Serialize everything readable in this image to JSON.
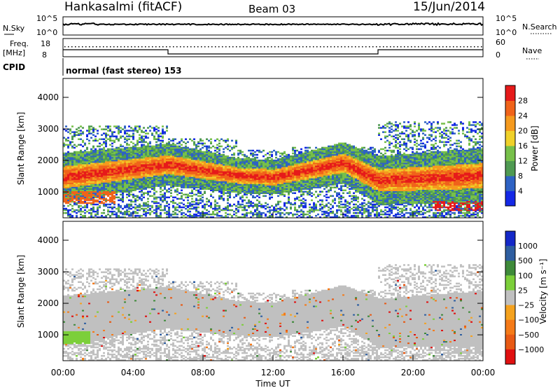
{
  "header": {
    "station": "Hankasalmi (fitACF)",
    "beam": "Beam 03",
    "date": "15/Jun/2014"
  },
  "left_labels": {
    "nsky": "N.Sky",
    "nsky_ticks": [
      "10^5",
      "10^0"
    ],
    "freq": "Freq.",
    "freq_unit": "[MHz]",
    "freq_ticks": [
      "18",
      "8"
    ],
    "cpid": "CPID"
  },
  "right_labels": {
    "nsearch": "N.Search",
    "nsearch_ticks": [
      "10^5",
      "10^0"
    ],
    "nave": "Nave",
    "nave_ticks": [
      "60",
      "0"
    ]
  },
  "cpid_text": "normal (fast stereo) 153",
  "time_axis": {
    "label": "Time UT",
    "ticks": [
      "00:00",
      "04:00",
      "08:00",
      "12:00",
      "16:00",
      "20:00",
      "00:00"
    ]
  },
  "colors": {
    "power": [
      "#1428e6",
      "#2e62c4",
      "#4f9a52",
      "#77c04a",
      "#f0d12a",
      "#f59a1e",
      "#f0631a",
      "#e61a1a"
    ],
    "velocity": [
      "#1428c8",
      "#2e5ea0",
      "#3e8a3a",
      "#7ccf3a",
      "#c0c0c0",
      "#f5a21e",
      "#f57a18",
      "#e85a14",
      "#e01010"
    ]
  },
  "chart_data": [
    {
      "type": "heatmap",
      "name_label": "Power",
      "ylabel": "Slant Range [km]",
      "xlabel": "Time UT",
      "x_range_hours": [
        0,
        24
      ],
      "ylim": [
        180,
        4600
      ],
      "y_ticks": [
        "1000",
        "2000",
        "3000",
        "4000"
      ],
      "colorbar": {
        "label": "Power [dB]",
        "ticks": [
          "4",
          "8",
          "12",
          "16",
          "20",
          "24",
          "28"
        ],
        "range": [
          0,
          32
        ]
      },
      "echo_bands": [
        {
          "t": 0,
          "center_km": 1450,
          "width_km": 350
        },
        {
          "t": 6,
          "center_km": 1850,
          "width_km": 300
        },
        {
          "t": 10,
          "center_km": 1500,
          "width_km": 250
        },
        {
          "t": 12,
          "center_km": 1450,
          "width_km": 250
        },
        {
          "t": 16,
          "center_km": 1900,
          "width_km": 300
        },
        {
          "t": 18,
          "center_km": 1350,
          "width_km": 350
        },
        {
          "t": 24,
          "center_km": 1500,
          "width_km": 400
        }
      ]
    },
    {
      "type": "heatmap",
      "name_label": "Velocity",
      "ylabel": "Slant Range [km]",
      "xlabel": "Time UT",
      "x_range_hours": [
        0,
        24
      ],
      "ylim": [
        180,
        4600
      ],
      "y_ticks": [
        "1000",
        "2000",
        "3000",
        "4000"
      ],
      "colorbar": {
        "label": "Velocity [m s⁻¹]",
        "ticks": [
          "1000",
          "500",
          "100",
          "25",
          "−25",
          "−100",
          "−500",
          "−1000"
        ]
      }
    }
  ]
}
